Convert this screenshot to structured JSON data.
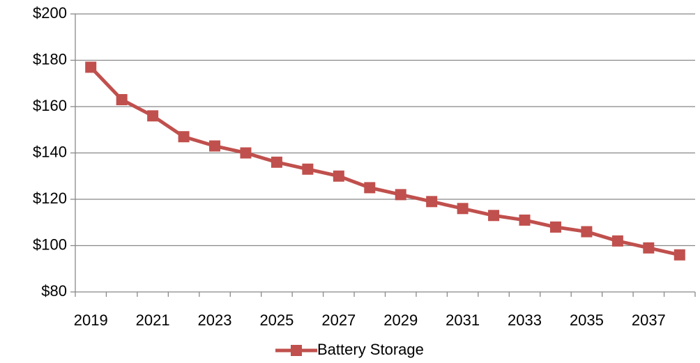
{
  "chart_data": {
    "type": "line",
    "categories": [
      "2019",
      null,
      "2021",
      null,
      "2023",
      null,
      "2025",
      null,
      "2027",
      null,
      "2029",
      null,
      "2031",
      null,
      "2033",
      null,
      "2035",
      null,
      "2037",
      null
    ],
    "series": [
      {
        "name": "Battery Storage",
        "color": "#c0504d",
        "values": [
          177,
          163,
          156,
          147,
          143,
          140,
          136,
          133,
          130,
          125,
          122,
          119,
          116,
          113,
          111,
          108,
          106,
          102,
          99,
          96
        ]
      }
    ],
    "ylim": [
      80,
      200
    ],
    "yticks": [
      {
        "value": 80,
        "label": "$80"
      },
      {
        "value": 100,
        "label": "$100"
      },
      {
        "value": 120,
        "label": "$120"
      },
      {
        "value": 140,
        "label": "$140"
      },
      {
        "value": 160,
        "label": "$160"
      },
      {
        "value": 180,
        "label": "$180"
      },
      {
        "value": 200,
        "label": "$200"
      }
    ],
    "grid": true,
    "legend": "bottom"
  }
}
